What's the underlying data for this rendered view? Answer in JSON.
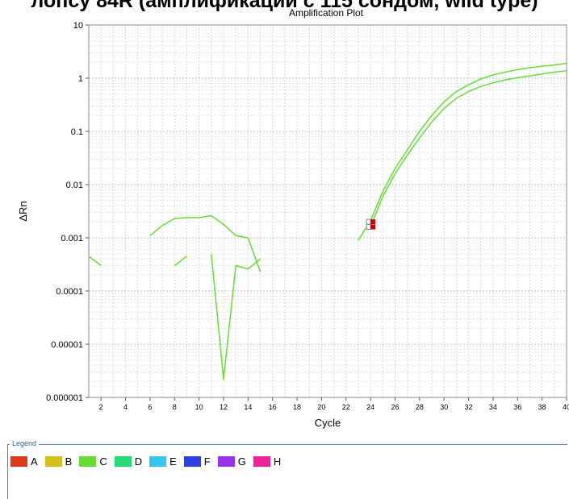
{
  "header": {
    "cut_off_title": "лопсу 84R (амплификации с 115 сондом, wild type)"
  },
  "chart_data": {
    "type": "line",
    "title": "Amplification Plot",
    "xlabel": "Cycle",
    "ylabel": "ΔRn",
    "xlim": [
      1,
      40
    ],
    "ylim": [
      1e-06,
      10
    ],
    "yscale": "log",
    "grid": true,
    "x_ticks": [
      "2",
      "4",
      "6",
      "8",
      "10",
      "12",
      "14",
      "16",
      "18",
      "20",
      "22",
      "24",
      "26",
      "28",
      "30",
      "32",
      "34",
      "36",
      "38",
      "40"
    ],
    "y_ticks": [
      "0.000001",
      "0.00001",
      "0.0001",
      "0.001",
      "0.01",
      "0.1",
      "1",
      "10"
    ],
    "series_color": "#66dd33",
    "series": [
      {
        "points": [
          [
            1,
            0.00045
          ],
          [
            2,
            0.0003
          ]
        ]
      },
      {
        "points": [
          [
            6,
            0.0011
          ],
          [
            7,
            0.0017
          ],
          [
            8,
            0.0023
          ],
          [
            9,
            0.0024
          ],
          [
            10,
            0.0024
          ],
          [
            11,
            0.0026
          ],
          [
            12,
            0.0018
          ],
          [
            13,
            0.0011
          ],
          [
            14,
            0.001
          ],
          [
            15,
            0.00023
          ]
        ]
      },
      {
        "points": [
          [
            8,
            0.0003
          ],
          [
            9,
            0.00045
          ]
        ]
      },
      {
        "points": [
          [
            11,
            0.0005
          ],
          [
            12,
            2.2e-06
          ],
          [
            13,
            0.0003
          ],
          [
            14,
            0.00026
          ],
          [
            15,
            0.0004
          ]
        ]
      },
      {
        "points": [
          [
            23,
            0.0009
          ],
          [
            24,
            0.0021
          ],
          [
            25,
            0.0075
          ],
          [
            26,
            0.02
          ],
          [
            27,
            0.045
          ],
          [
            28,
            0.1
          ],
          [
            29,
            0.2
          ],
          [
            30,
            0.36
          ],
          [
            31,
            0.56
          ],
          [
            32,
            0.75
          ],
          [
            33,
            0.97
          ],
          [
            34,
            1.15
          ],
          [
            35,
            1.3
          ],
          [
            36,
            1.45
          ],
          [
            37,
            1.57
          ],
          [
            38,
            1.68
          ],
          [
            39,
            1.77
          ],
          [
            40,
            1.9
          ]
        ]
      },
      {
        "points": [
          [
            24,
            0.0016
          ],
          [
            25,
            0.006
          ],
          [
            26,
            0.016
          ],
          [
            27,
            0.036
          ],
          [
            28,
            0.075
          ],
          [
            29,
            0.15
          ],
          [
            30,
            0.27
          ],
          [
            31,
            0.42
          ],
          [
            32,
            0.56
          ],
          [
            33,
            0.7
          ],
          [
            34,
            0.82
          ],
          [
            35,
            0.93
          ],
          [
            36,
            1.02
          ],
          [
            37,
            1.1
          ],
          [
            38,
            1.2
          ],
          [
            39,
            1.3
          ],
          [
            40,
            1.38
          ]
        ]
      }
    ],
    "threshold_markers": [
      {
        "x": 24,
        "y": 0.002,
        "color": "#cc0000"
      },
      {
        "x": 24,
        "y": 0.0016,
        "color": "#cc0000"
      }
    ]
  },
  "legend": {
    "title": "Legend",
    "items": [
      {
        "label": "A",
        "color": "#e03a1e"
      },
      {
        "label": "B",
        "color": "#d4c21a"
      },
      {
        "label": "C",
        "color": "#66dd33"
      },
      {
        "label": "D",
        "color": "#22dd77"
      },
      {
        "label": "E",
        "color": "#33c6ee"
      },
      {
        "label": "F",
        "color": "#2f3fe0"
      },
      {
        "label": "G",
        "color": "#9933ee"
      },
      {
        "label": "H",
        "color": "#ee2299"
      }
    ]
  }
}
